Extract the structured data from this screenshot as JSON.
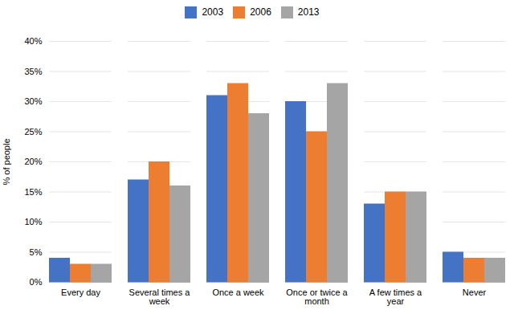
{
  "chart_data": {
    "type": "bar",
    "categories": [
      "Every day",
      "Several times a\nweek",
      "Once a week",
      "Once or twice a\nmonth",
      "A few times a\nyear",
      "Never"
    ],
    "series": [
      {
        "name": "2003",
        "color": "#4472C4",
        "values": [
          4,
          17,
          31,
          30,
          13,
          5
        ]
      },
      {
        "name": "2006",
        "color": "#ED7D31",
        "values": [
          3,
          20,
          33,
          25,
          15,
          4
        ]
      },
      {
        "name": "2013",
        "color": "#A5A5A5",
        "values": [
          3,
          16,
          28,
          33,
          15,
          4
        ]
      }
    ],
    "ylabel": "% of people",
    "ylim": [
      0,
      40
    ],
    "yticks": [
      {
        "value": 0,
        "label": "0%"
      },
      {
        "value": 5,
        "label": "5%"
      },
      {
        "value": 10,
        "label": "10%"
      },
      {
        "value": 15,
        "label": "15%"
      },
      {
        "value": 20,
        "label": "20%"
      },
      {
        "value": 25,
        "label": "25%"
      },
      {
        "value": 30,
        "label": "30%"
      },
      {
        "value": 35,
        "label": "35%"
      },
      {
        "value": 40,
        "label": "40%"
      }
    ],
    "grid": true,
    "legend": "top"
  }
}
